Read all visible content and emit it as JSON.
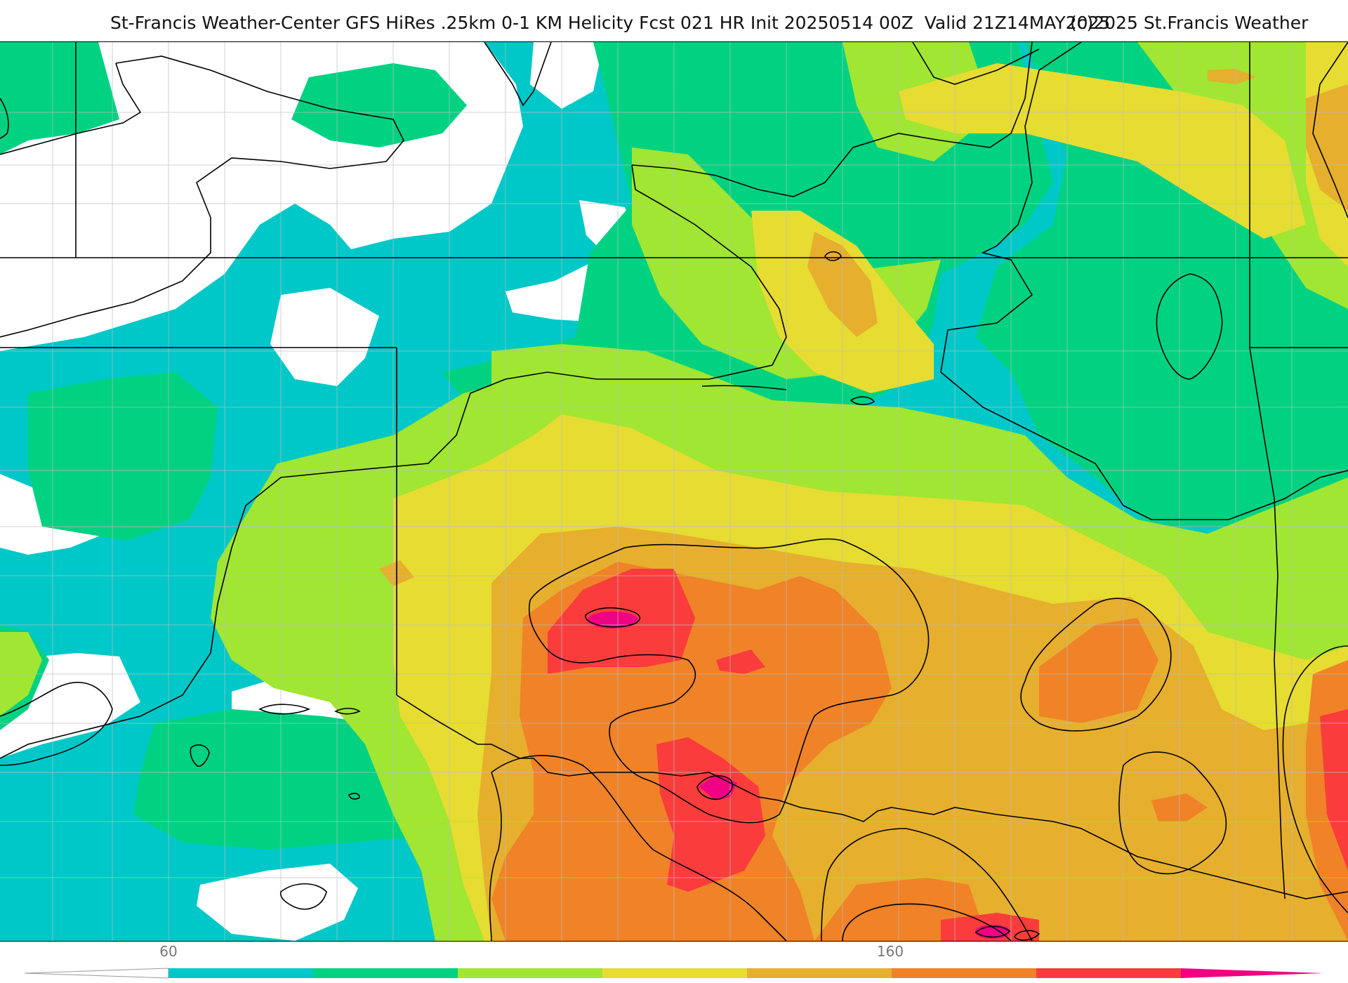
{
  "title": {
    "main": "St-Francis Weather-Center GFS HiRes .25km 0-1 KM Helicity Fcst 021 HR Init 20250514 00Z  Valid 21Z14MAY2025",
    "copyright": "(c)2025 St.Francis Weather"
  },
  "colorbar": {
    "labels": [
      "60",
      "160"
    ],
    "colors": [
      "#ffffff",
      "#00c8c8",
      "#00d282",
      "#a0e632",
      "#e6dc32",
      "#e6af2d",
      "#f08228",
      "#fa3c3c",
      "#f00082"
    ]
  },
  "map_colors": {
    "white": "#ffffff",
    "cyan": "#00c8c8",
    "green": "#00d282",
    "lime": "#a0e632",
    "yellow": "#e6dc32",
    "gold": "#e6af2d",
    "orange": "#f08228",
    "red": "#fa3c3c",
    "magenta": "#f00082"
  }
}
